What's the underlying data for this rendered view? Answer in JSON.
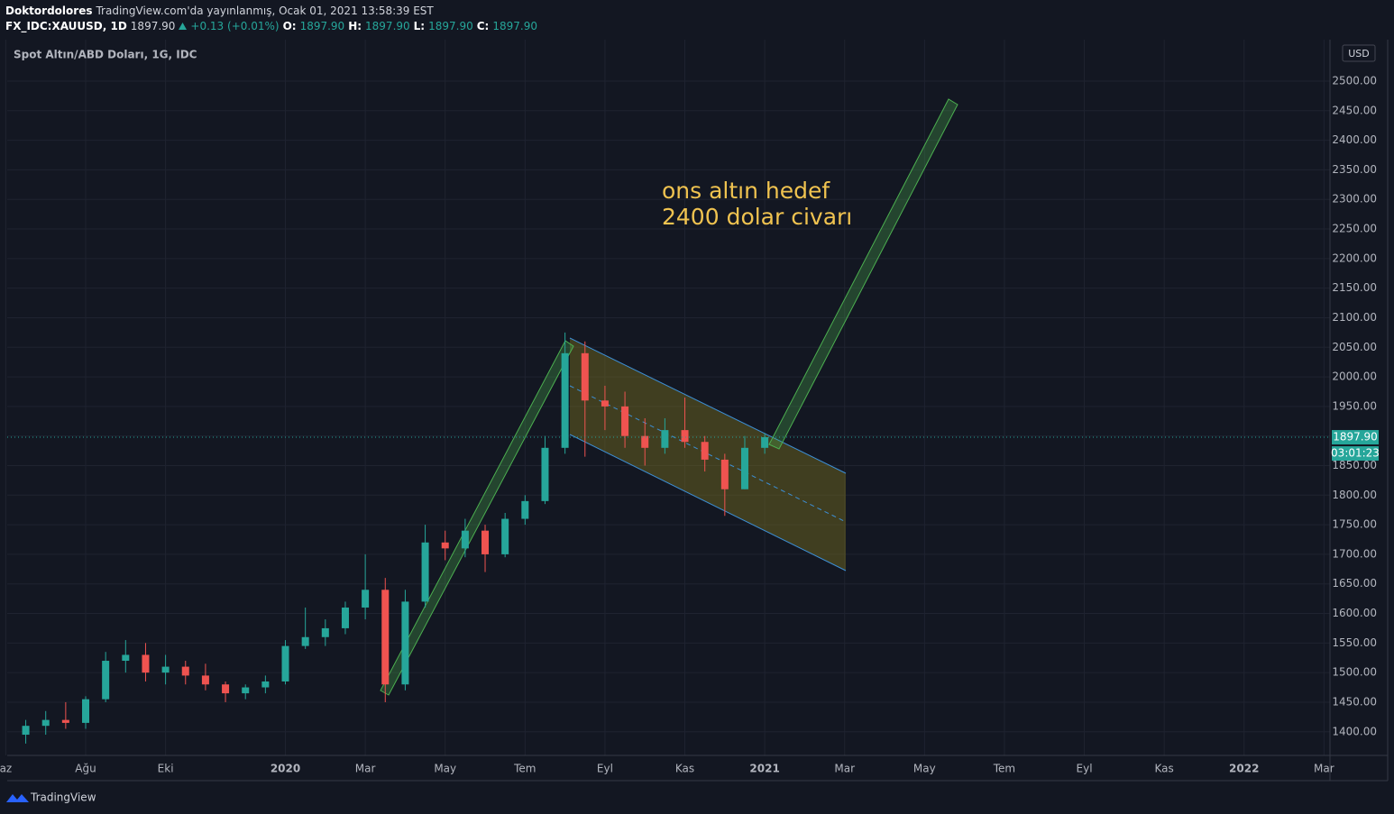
{
  "header": {
    "author": "Doktordolores",
    "published": "TradingView.com'da yayınlanmış, Ocak 01, 2021 13:58:39 EST",
    "symbol": "FX_IDC:XAUUSD, 1D",
    "price": "1897.90",
    "change": "+0.13 (+0.01%)",
    "o_label": "O:",
    "open": "1897.90",
    "h_label": "H:",
    "high": "1897.90",
    "l_label": "L:",
    "low": "1897.90",
    "c_label": "C:",
    "close": "1897.90"
  },
  "chart_data": {
    "type": "candlestick",
    "title": "Spot Altın/ABD Doları, 1G, IDC",
    "currency": "USD",
    "x": [
      5.5,
      6.0,
      6.5,
      7.0,
      7.5,
      8.0,
      8.5,
      9.0,
      9.5,
      10.0,
      10.5,
      11.0,
      11.5,
      12.0,
      12.5,
      13.0,
      13.5,
      14.0,
      14.5,
      15.0,
      15.5,
      16.0,
      16.5,
      17.0,
      17.5,
      18.0,
      18.5,
      19.0,
      19.5,
      20.0,
      20.5,
      21.0,
      21.5,
      22.0,
      22.5,
      23.0,
      23.5,
      24.0
    ],
    "series": [
      {
        "open": [
          1395,
          1410,
          1420,
          1415,
          1455,
          1520,
          1530,
          1500,
          1510,
          1495,
          1480,
          1465,
          1475,
          1485,
          1545,
          1560,
          1575,
          1610,
          1640,
          1480,
          1620,
          1720,
          1710,
          1740,
          1700,
          1760,
          1790,
          1880,
          2040,
          1960,
          1950,
          1900,
          1880,
          1910,
          1890,
          1860,
          1810,
          1880
        ],
        "high": [
          1420,
          1435,
          1450,
          1460,
          1535,
          1555,
          1550,
          1530,
          1520,
          1515,
          1485,
          1480,
          1495,
          1555,
          1610,
          1590,
          1620,
          1700,
          1660,
          1640,
          1750,
          1740,
          1760,
          1750,
          1770,
          1800,
          1900,
          2075,
          2060,
          1985,
          1975,
          1930,
          1930,
          1965,
          1900,
          1870,
          1900,
          1905
        ],
        "low": [
          1380,
          1395,
          1405,
          1405,
          1450,
          1500,
          1485,
          1480,
          1480,
          1470,
          1450,
          1455,
          1465,
          1480,
          1540,
          1545,
          1565,
          1590,
          1450,
          1470,
          1610,
          1690,
          1695,
          1670,
          1695,
          1750,
          1785,
          1870,
          1865,
          1910,
          1880,
          1850,
          1870,
          1880,
          1840,
          1765,
          1810,
          1870
        ],
        "close": [
          1410,
          1420,
          1415,
          1455,
          1520,
          1530,
          1500,
          1510,
          1495,
          1480,
          1465,
          1475,
          1485,
          1545,
          1560,
          1575,
          1610,
          1640,
          1480,
          1620,
          1720,
          1710,
          1740,
          1700,
          1760,
          1790,
          1880,
          2040,
          1960,
          1950,
          1900,
          1880,
          1910,
          1890,
          1860,
          1810,
          1880,
          1898
        ]
      }
    ],
    "up_color": "#26a69a",
    "down_color": "#ef5350",
    "xlim": [
      5.036,
      38.15
    ],
    "xticks": [
      {
        "value": 5,
        "label": "az"
      },
      {
        "value": 7,
        "label": "Ağu"
      },
      {
        "value": 9,
        "label": "Eki"
      },
      {
        "value": 12,
        "label": "2020"
      },
      {
        "value": 14,
        "label": "Mar"
      },
      {
        "value": 16,
        "label": "May"
      },
      {
        "value": 18,
        "label": "Tem"
      },
      {
        "value": 20,
        "label": "Eyl"
      },
      {
        "value": 22,
        "label": "Kas"
      },
      {
        "value": 24,
        "label": "2021"
      },
      {
        "value": 26,
        "label": "Mar"
      },
      {
        "value": 28,
        "label": "May"
      },
      {
        "value": 30,
        "label": "Tem"
      },
      {
        "value": 32,
        "label": "Eyl"
      },
      {
        "value": 34,
        "label": "Kas"
      },
      {
        "value": 36,
        "label": "2022"
      },
      {
        "value": 38,
        "label": "Mar"
      }
    ],
    "ylim": [
      1360,
      2564
    ],
    "yticks": [
      {
        "value": 1400,
        "label": "1400.00"
      },
      {
        "value": 1450,
        "label": "1450.00"
      },
      {
        "value": 1500,
        "label": "1500.00"
      },
      {
        "value": 1550,
        "label": "1550.00"
      },
      {
        "value": 1600,
        "label": "1600.00"
      },
      {
        "value": 1650,
        "label": "1650.00"
      },
      {
        "value": 1700,
        "label": "1700.00"
      },
      {
        "value": 1750,
        "label": "1750.00"
      },
      {
        "value": 1800,
        "label": "1800.00"
      },
      {
        "value": 1850,
        "label": "1850.00"
      },
      {
        "value": 1900,
        "label": "1900.00"
      },
      {
        "value": 1950,
        "label": "1950.00"
      },
      {
        "value": 2000,
        "label": "2000.00"
      },
      {
        "value": 2050,
        "label": "2050.00"
      },
      {
        "value": 2100,
        "label": "2100.00"
      },
      {
        "value": 2150,
        "label": "2150.00"
      },
      {
        "value": 2200,
        "label": "2200.00"
      },
      {
        "value": 2250,
        "label": "2250.00"
      },
      {
        "value": 2300,
        "label": "2300.00"
      },
      {
        "value": 2350,
        "label": "2350.00"
      },
      {
        "value": 2400,
        "label": "2400.00"
      },
      {
        "value": 2450,
        "label": "2450.00"
      },
      {
        "value": 2500,
        "label": "2500.00"
      }
    ],
    "grid": true,
    "last_price": {
      "value": 1897.9,
      "label": "1897.90"
    },
    "countdown": "03:01:23",
    "annotation": [
      "ons altın hedef",
      "2400 dolar civarı"
    ]
  },
  "footer": {
    "brand": "TradingView"
  }
}
